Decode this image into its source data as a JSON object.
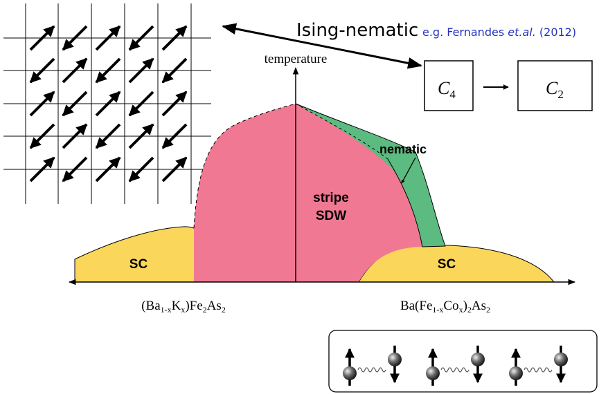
{
  "header": {
    "title": "Ising-nematic",
    "citation": {
      "prefix": "e.g. Fernandes",
      "etal": "et.al.",
      "year": "(2012)"
    }
  },
  "axis": {
    "y_label": "temperature"
  },
  "phases": {
    "nematic": "nematic",
    "sdw": [
      "stripe",
      "SDW"
    ],
    "sc_left": "SC",
    "sc_right": "SC"
  },
  "compounds": {
    "left": [
      {
        "text": "(Ba"
      },
      {
        "sub": "1-x"
      },
      {
        "text": "K"
      },
      {
        "sub": "x"
      },
      {
        "text": ")Fe"
      },
      {
        "sub": "2"
      },
      {
        "text": "As"
      },
      {
        "sub": "2"
      }
    ],
    "right": [
      {
        "text": "Ba(Fe"
      },
      {
        "sub": "1-x"
      },
      {
        "text": "Co"
      },
      {
        "sub": "x"
      },
      {
        "text": ")"
      },
      {
        "sub": "2"
      },
      {
        "text": "As"
      },
      {
        "sub": "2"
      }
    ]
  },
  "symmetry": {
    "from": {
      "symbol": "C",
      "sub": "4"
    },
    "to": {
      "symbol": "C",
      "sub": "2"
    }
  }
}
